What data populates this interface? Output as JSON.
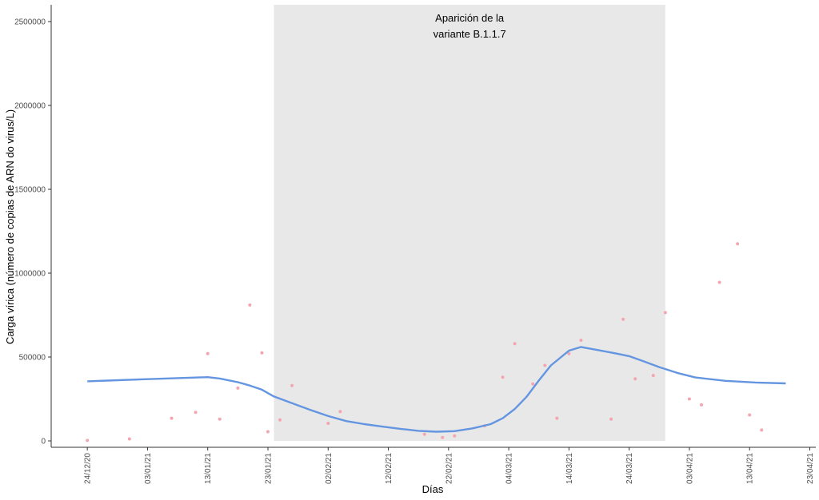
{
  "chart_data": {
    "type": "scatter",
    "title": "",
    "xlabel": "Días",
    "ylabel": "Carga vírica (número de copias de ARN do virus/L)",
    "ylim": [
      0,
      2500000
    ],
    "yticks": [
      "0",
      "500000",
      "1000000",
      "1500000",
      "2000000",
      "2500000"
    ],
    "ytick_values": [
      0,
      500000,
      1000000,
      1500000,
      2000000,
      2500000
    ],
    "xlim": [
      "2020-12-18",
      "2021-04-24"
    ],
    "xticks": [
      "24/12/20",
      "03/01/21",
      "13/01/21",
      "23/01/21",
      "02/02/21",
      "12/02/21",
      "22/02/21",
      "04/03/21",
      "14/03/21",
      "24/03/21",
      "03/04/21",
      "13/04/21",
      "23/04/21"
    ],
    "xtick_dates": [
      "2020-12-24",
      "2021-01-03",
      "2021-01-13",
      "2021-01-23",
      "2021-02-02",
      "2021-02-12",
      "2021-02-22",
      "2021-03-04",
      "2021-03-14",
      "2021-03-24",
      "2021-04-03",
      "2021-04-13",
      "2021-04-23"
    ],
    "grid": false,
    "shaded_region": {
      "start": "2021-01-24",
      "end": "2021-03-30",
      "label_lines": [
        "Aparición de la",
        "variante B.1.1.7"
      ],
      "color": "#e8e8e8"
    },
    "points_color": "#f4a6b0",
    "points": [
      {
        "x": "2020-12-24",
        "y": 3000
      },
      {
        "x": "2020-12-31",
        "y": 12000
      },
      {
        "x": "2021-01-07",
        "y": 135000
      },
      {
        "x": "2021-01-11",
        "y": 170000
      },
      {
        "x": "2021-01-13",
        "y": 520000
      },
      {
        "x": "2021-01-15",
        "y": 130000
      },
      {
        "x": "2021-01-18",
        "y": 315000
      },
      {
        "x": "2021-01-20",
        "y": 810000
      },
      {
        "x": "2021-01-22",
        "y": 525000
      },
      {
        "x": "2021-01-23",
        "y": 55000
      },
      {
        "x": "2021-01-25",
        "y": 125000
      },
      {
        "x": "2021-01-27",
        "y": 330000
      },
      {
        "x": "2021-02-02",
        "y": 105000
      },
      {
        "x": "2021-02-04",
        "y": 175000
      },
      {
        "x": "2021-02-18",
        "y": 40000
      },
      {
        "x": "2021-02-21",
        "y": 20000
      },
      {
        "x": "2021-02-23",
        "y": 30000
      },
      {
        "x": "2021-02-28",
        "y": 90000
      },
      {
        "x": "2021-03-03",
        "y": 380000
      },
      {
        "x": "2021-03-05",
        "y": 580000
      },
      {
        "x": "2021-03-08",
        "y": 340000
      },
      {
        "x": "2021-03-10",
        "y": 450000
      },
      {
        "x": "2021-03-12",
        "y": 135000
      },
      {
        "x": "2021-03-14",
        "y": 520000
      },
      {
        "x": "2021-03-16",
        "y": 600000
      },
      {
        "x": "2021-03-21",
        "y": 130000
      },
      {
        "x": "2021-03-23",
        "y": 725000
      },
      {
        "x": "2021-03-25",
        "y": 370000
      },
      {
        "x": "2021-03-28",
        "y": 390000
      },
      {
        "x": "2021-03-30",
        "y": 765000
      },
      {
        "x": "2021-04-03",
        "y": 250000
      },
      {
        "x": "2021-04-05",
        "y": 215000
      },
      {
        "x": "2021-04-08",
        "y": 945000
      },
      {
        "x": "2021-04-11",
        "y": 1175000
      },
      {
        "x": "2021-04-13",
        "y": 155000
      },
      {
        "x": "2021-04-15",
        "y": 65000
      }
    ],
    "trend_color": "#6495e0",
    "trend": [
      {
        "x": "2020-12-24",
        "y": 355000
      },
      {
        "x": "2021-01-03",
        "y": 368000
      },
      {
        "x": "2021-01-13",
        "y": 380000
      },
      {
        "x": "2021-01-15",
        "y": 372000
      },
      {
        "x": "2021-01-18",
        "y": 350000
      },
      {
        "x": "2021-01-20",
        "y": 330000
      },
      {
        "x": "2021-01-22",
        "y": 305000
      },
      {
        "x": "2021-01-24",
        "y": 265000
      },
      {
        "x": "2021-01-27",
        "y": 225000
      },
      {
        "x": "2021-01-30",
        "y": 185000
      },
      {
        "x": "2021-02-02",
        "y": 148000
      },
      {
        "x": "2021-02-05",
        "y": 118000
      },
      {
        "x": "2021-02-08",
        "y": 100000
      },
      {
        "x": "2021-02-11",
        "y": 85000
      },
      {
        "x": "2021-02-14",
        "y": 72000
      },
      {
        "x": "2021-02-17",
        "y": 60000
      },
      {
        "x": "2021-02-20",
        "y": 55000
      },
      {
        "x": "2021-02-23",
        "y": 58000
      },
      {
        "x": "2021-02-26",
        "y": 75000
      },
      {
        "x": "2021-03-01",
        "y": 100000
      },
      {
        "x": "2021-03-03",
        "y": 135000
      },
      {
        "x": "2021-03-05",
        "y": 190000
      },
      {
        "x": "2021-03-07",
        "y": 265000
      },
      {
        "x": "2021-03-09",
        "y": 360000
      },
      {
        "x": "2021-03-11",
        "y": 450000
      },
      {
        "x": "2021-03-14",
        "y": 538000
      },
      {
        "x": "2021-03-16",
        "y": 560000
      },
      {
        "x": "2021-03-19",
        "y": 540000
      },
      {
        "x": "2021-03-22",
        "y": 520000
      },
      {
        "x": "2021-03-24",
        "y": 505000
      },
      {
        "x": "2021-03-26",
        "y": 480000
      },
      {
        "x": "2021-03-29",
        "y": 440000
      },
      {
        "x": "2021-04-01",
        "y": 405000
      },
      {
        "x": "2021-04-04",
        "y": 378000
      },
      {
        "x": "2021-04-09",
        "y": 358000
      },
      {
        "x": "2021-04-14",
        "y": 348000
      },
      {
        "x": "2021-04-19",
        "y": 343000
      }
    ]
  }
}
